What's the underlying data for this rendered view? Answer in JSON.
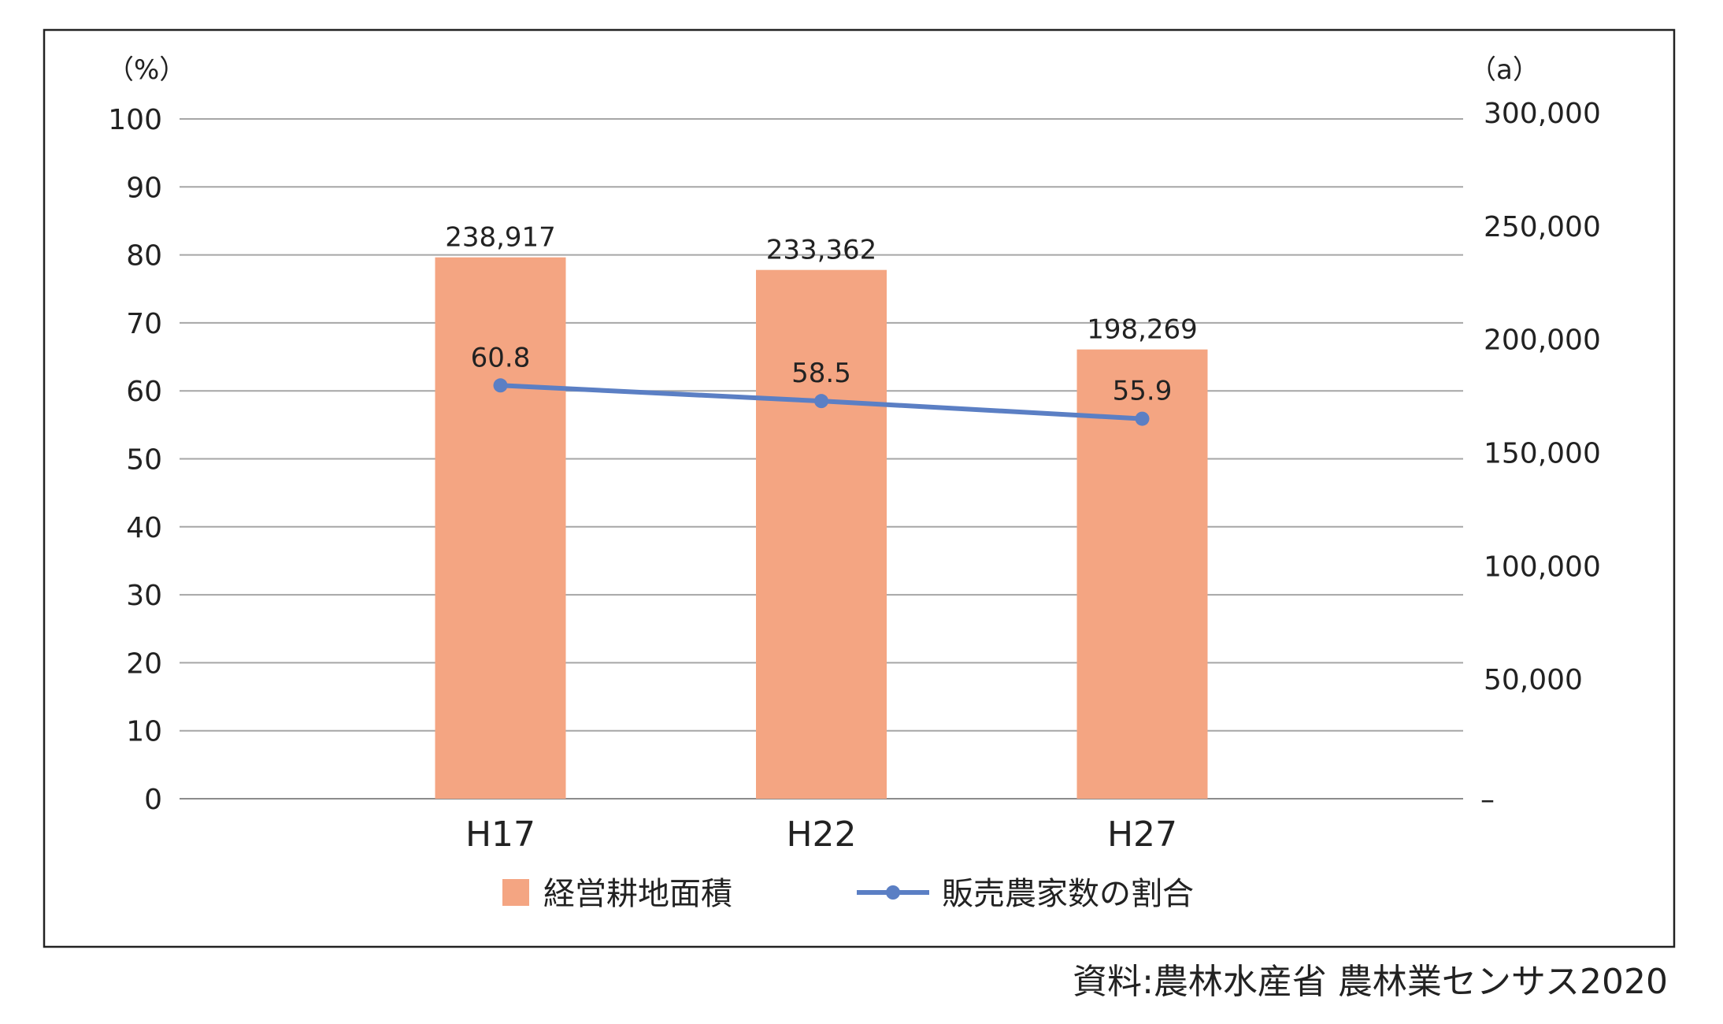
{
  "chart_data": {
    "type": "bar",
    "categories": [
      "H17",
      "H22",
      "H27"
    ],
    "series": [
      {
        "name": "経営耕地面積",
        "type": "bar",
        "axis": "right",
        "color": "#F4A582",
        "values": [
          238917,
          233362,
          198269
        ],
        "data_labels": [
          "238,917",
          "233,362",
          "198,269"
        ]
      },
      {
        "name": "販売農家数の割合",
        "type": "line",
        "axis": "left",
        "color": "#5B7FC4",
        "values": [
          60.8,
          58.5,
          55.9
        ],
        "data_labels": [
          "60.8",
          "58.5",
          "55.9"
        ]
      }
    ],
    "left_axis": {
      "unit": "（%）",
      "min": 0,
      "max": 100,
      "ticks": [
        "100",
        "90",
        "80",
        "70",
        "60",
        "50",
        "40",
        "30",
        "20",
        "10",
        "0"
      ]
    },
    "right_axis": {
      "unit": "（a）",
      "min": 0,
      "max": 300000,
      "ticks": [
        "300,000",
        "250,000",
        "200,000",
        "150,000",
        "100,000",
        "50,000",
        "–"
      ]
    },
    "grid": true,
    "legend_position": "bottom"
  },
  "source": "資料:農林水産省 農林業センサス2020"
}
